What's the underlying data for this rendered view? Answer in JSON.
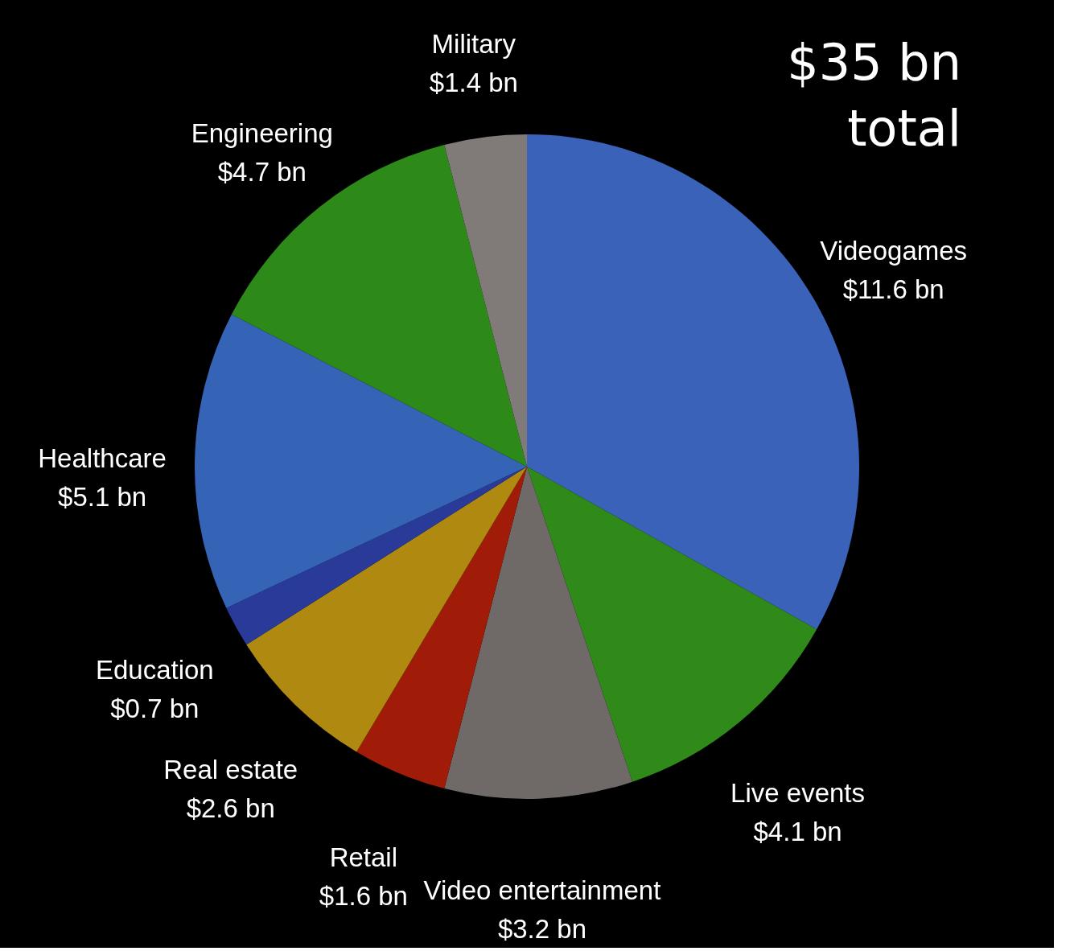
{
  "chart_data": {
    "type": "pie",
    "categories": [
      "Videogames",
      "Live events",
      "Video entertainment",
      "Retail",
      "Real estate",
      "Education",
      "Healthcare",
      "Engineering",
      "Military"
    ],
    "values": [
      11.6,
      4.1,
      3.2,
      1.6,
      2.6,
      0.7,
      5.1,
      4.7,
      1.4
    ],
    "value_labels": [
      "$11.6 bn",
      "$4.1 bn",
      "$3.2 bn",
      "$1.6 bn",
      "$2.6 bn",
      "$0.7 bn",
      "$5.1 bn",
      "$4.7 bn",
      "$1.4 bn"
    ],
    "colors": [
      "#3a62b8",
      "#2f8a1a",
      "#6f6a68",
      "#a01c08",
      "#b08a10",
      "#2a3a98",
      "#3563b5",
      "#2e8a18",
      "#807a78"
    ],
    "annotations": [
      "$35 bn\ntotal"
    ],
    "legend": false
  }
}
